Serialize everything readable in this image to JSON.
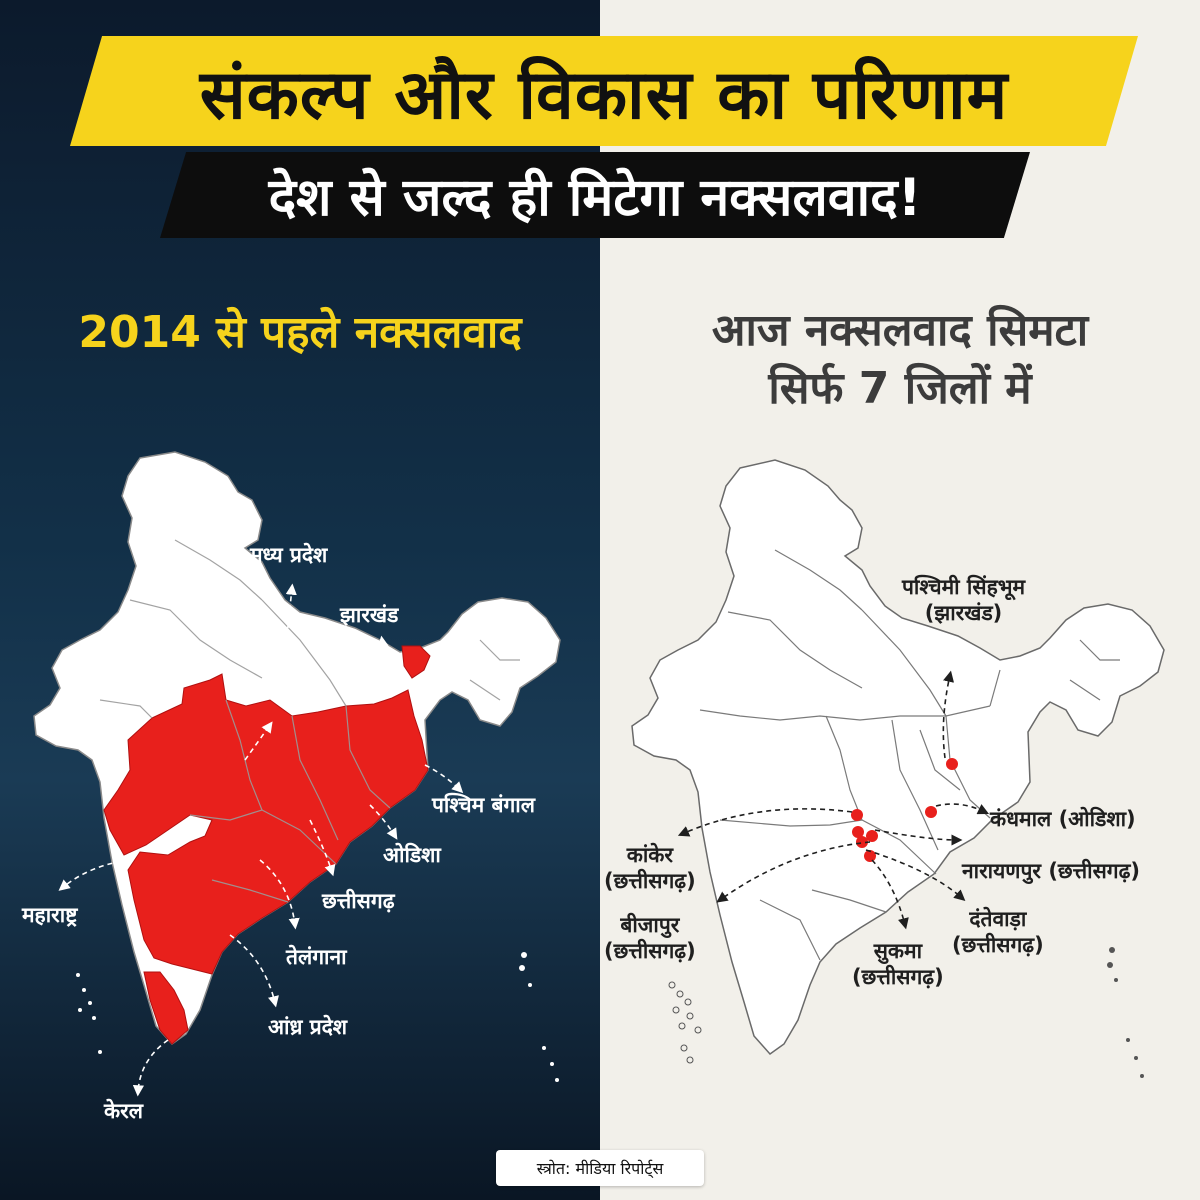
{
  "title": "संकल्प और विकास का परिणाम",
  "subtitle": "देश से जल्द ही मिटेगा नक्सलवाद!",
  "left_panel": {
    "heading": "2014 से पहले नक्सलवाद",
    "labels": {
      "madhya_pradesh": "मध्य प्रदेश",
      "jharkhand": "झारखंड",
      "paschim_bangal": "पश्चिम बंगाल",
      "odisha": "ओडिशा",
      "chhattisgarh": "छत्तीसगढ़",
      "telangana": "तेलंगाना",
      "andhra_pradesh": "आंध्र प्रदेश",
      "maharashtra": "महाराष्ट्र",
      "kerala": "केरल"
    }
  },
  "right_panel": {
    "heading_line1": "आज नक्सलवाद सिमटा",
    "heading_line2": "सिर्फ 7 जिलों में",
    "districts": {
      "paschimi_singhbhum": {
        "name": "पश्चिमी सिंहभूम",
        "state": "(झारखंड)"
      },
      "kandhamal": {
        "name": "कंधमाल (ओडिशा)"
      },
      "narayanpur": {
        "name": "नारायणपुर (छत्तीसगढ़)"
      },
      "dantewada": {
        "name": "दंतेवाड़ा",
        "state": "(छत्तीसगढ़)"
      },
      "sukma": {
        "name": "सुकमा",
        "state": "(छत्तीसगढ़)"
      },
      "bijapur": {
        "name": "बीजापुर",
        "state": "(छत्तीसगढ़)"
      },
      "kanker": {
        "name": "कांकेर",
        "state": "(छत्तीसगढ़)"
      }
    }
  },
  "source": "स्त्रोत: मीडिया रिपोर्ट्स",
  "colors": {
    "highlight_red": "#e8201c",
    "banner_yellow": "#f6d31c",
    "dark_bg": "#0c1a2c",
    "light_bg": "#f2f0ea"
  }
}
